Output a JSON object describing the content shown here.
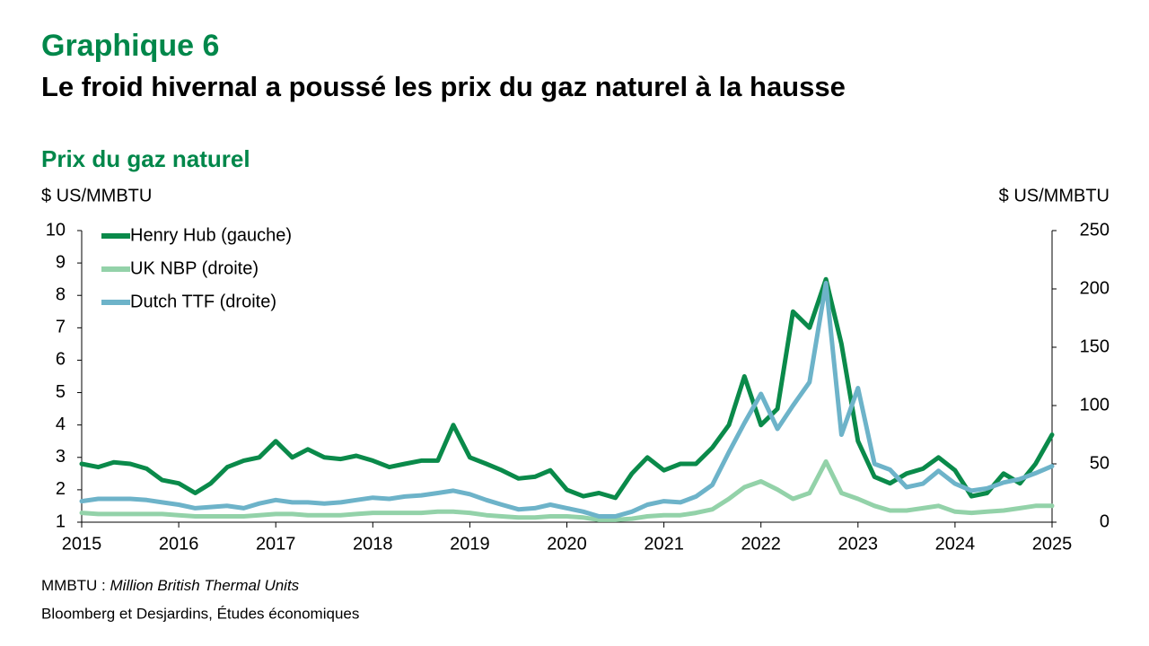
{
  "chart_data": {
    "type": "line",
    "title": "Graphique 6",
    "subtitle": "Le froid hivernal a poussé les prix du gaz naturel à la hausse",
    "chart_title": "Prix du gaz naturel",
    "y_label": "$ US/MMBTU",
    "y2_label": "$ US/MMBTU",
    "note_term": "MMBTU :",
    "note_text": "Million British Thermal Units",
    "source": "Bloomberg et Desjardins, Études économiques",
    "legend": "upper left",
    "xlim": [
      2015,
      2025
    ],
    "xticks": [
      2015,
      2016,
      2017,
      2018,
      2019,
      2020,
      2021,
      2022,
      2023,
      2024,
      2025
    ],
    "ylim": [
      1,
      10
    ],
    "yticks": [
      1,
      2,
      3,
      4,
      5,
      6,
      7,
      8,
      9,
      10
    ],
    "y2lim": [
      0,
      250
    ],
    "y2ticks": [
      0,
      50,
      100,
      150,
      200,
      250
    ],
    "x": [
      2015,
      2015.17,
      2015.33,
      2015.5,
      2015.67,
      2015.83,
      2016,
      2016.17,
      2016.33,
      2016.5,
      2016.67,
      2016.83,
      2017,
      2017.17,
      2017.33,
      2017.5,
      2017.67,
      2017.83,
      2018,
      2018.17,
      2018.33,
      2018.5,
      2018.67,
      2018.83,
      2019,
      2019.17,
      2019.33,
      2019.5,
      2019.67,
      2019.83,
      2020,
      2020.17,
      2020.33,
      2020.5,
      2020.67,
      2020.83,
      2021,
      2021.17,
      2021.33,
      2021.5,
      2021.67,
      2021.83,
      2022,
      2022.17,
      2022.33,
      2022.5,
      2022.67,
      2022.83,
      2023,
      2023.17,
      2023.33,
      2023.5,
      2023.67,
      2023.83,
      2024,
      2024.17,
      2024.33,
      2024.5,
      2024.67,
      2024.83,
      2025
    ],
    "series": [
      {
        "name": "Henry Hub (gauche)",
        "color": "#0a8a4a",
        "axis": "y",
        "values": [
          2.8,
          2.7,
          2.85,
          2.8,
          2.65,
          2.3,
          2.2,
          1.9,
          2.2,
          2.7,
          2.9,
          3.0,
          3.5,
          3.0,
          3.25,
          3.0,
          2.95,
          3.05,
          2.9,
          2.7,
          2.8,
          2.9,
          2.9,
          4.0,
          3.0,
          2.8,
          2.6,
          2.35,
          2.4,
          2.6,
          2.0,
          1.8,
          1.9,
          1.75,
          2.5,
          3.0,
          2.6,
          2.8,
          2.8,
          3.3,
          4.0,
          5.5,
          4.0,
          4.5,
          7.5,
          7.0,
          8.5,
          6.5,
          3.5,
          2.4,
          2.2,
          2.5,
          2.65,
          3.0,
          2.6,
          1.8,
          1.9,
          2.5,
          2.2,
          2.8,
          3.7
        ]
      },
      {
        "name": "UK NBP (droite)",
        "color": "#93d2a9",
        "axis": "y2",
        "values": [
          8,
          7,
          7,
          7,
          7,
          7,
          6,
          5,
          5,
          5,
          5,
          6,
          7,
          7,
          6,
          6,
          6,
          7,
          8,
          8,
          8,
          8,
          9,
          9,
          8,
          6,
          5,
          4,
          4,
          5,
          5,
          4,
          2,
          2,
          3,
          5,
          6,
          6,
          8,
          11,
          20,
          30,
          35,
          28,
          20,
          25,
          52,
          25,
          20,
          14,
          10,
          10,
          12,
          14,
          9,
          8,
          9,
          10,
          12,
          14,
          14
        ]
      },
      {
        "name": "Dutch TTF (droite)",
        "color": "#6db3c9",
        "axis": "y2",
        "values": [
          18,
          20,
          20,
          20,
          19,
          17,
          15,
          12,
          13,
          14,
          12,
          16,
          19,
          17,
          17,
          16,
          17,
          19,
          21,
          20,
          22,
          23,
          25,
          27,
          24,
          19,
          15,
          11,
          12,
          15,
          12,
          9,
          5,
          5,
          9,
          15,
          18,
          17,
          22,
          32,
          60,
          85,
          110,
          80,
          100,
          120,
          205,
          75,
          115,
          50,
          45,
          30,
          33,
          44,
          33,
          27,
          29,
          34,
          37,
          42,
          48
        ]
      }
    ]
  }
}
